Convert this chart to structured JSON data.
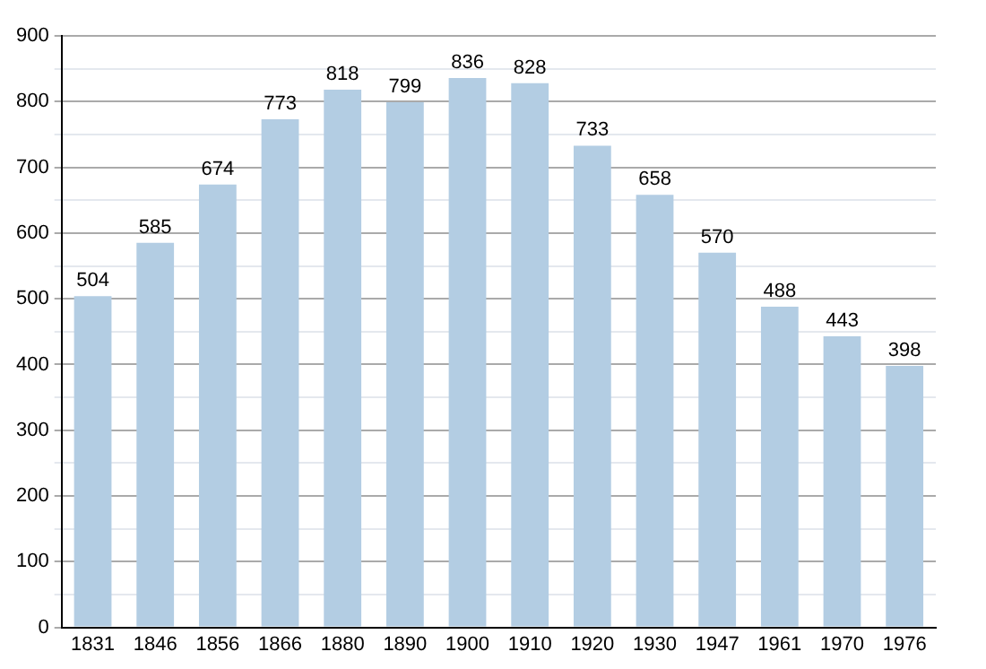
{
  "chart_data": {
    "type": "bar",
    "categories": [
      "1831",
      "1846",
      "1856",
      "1866",
      "1880",
      "1890",
      "1900",
      "1910",
      "1920",
      "1930",
      "1947",
      "1961",
      "1970",
      "1976"
    ],
    "values": [
      504,
      585,
      674,
      773,
      818,
      799,
      836,
      828,
      733,
      658,
      570,
      488,
      443,
      398
    ],
    "color": "#b3cde3",
    "ylim": [
      0,
      900
    ],
    "yticks": [
      0,
      {
        "value": 50,
        "label": null
      },
      100,
      {
        "value": 150,
        "label": null
      },
      200,
      {
        "value": 250,
        "label": null
      },
      300,
      {
        "value": 350,
        "label": null
      },
      400,
      {
        "value": 450,
        "label": null
      },
      500,
      {
        "value": 550,
        "label": null
      },
      600,
      {
        "value": 650,
        "label": null
      },
      700,
      {
        "value": 750,
        "label": null
      },
      800,
      {
        "value": 850,
        "label": null
      },
      900
    ],
    "grid": "y",
    "data_labels": true
  }
}
